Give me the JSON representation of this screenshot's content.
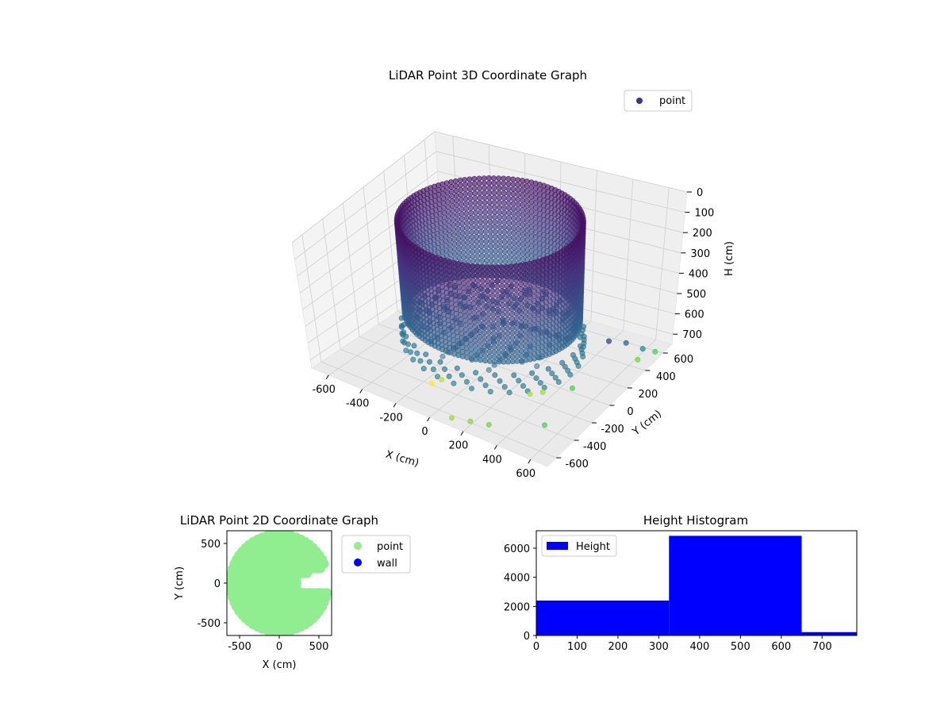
{
  "chart_data": [
    {
      "type": "scatter",
      "projection": "3d",
      "title": "LiDAR Point 3D Coordinate Graph",
      "xlabel": "X (cm)",
      "ylabel": "Y (cm)",
      "zlabel": "H (cm)",
      "xticks": [
        -600,
        -400,
        -200,
        0,
        200,
        400,
        600
      ],
      "yticks": [
        -600,
        -400,
        -200,
        0,
        200,
        400,
        600
      ],
      "zticks": [
        0,
        100,
        200,
        300,
        400,
        500,
        600,
        700
      ],
      "xlim": [
        -700,
        700
      ],
      "ylim": [
        -700,
        700
      ],
      "zlim": [
        0,
        750
      ],
      "z_inverted": true,
      "legend": {
        "placement": "top-right",
        "entries": [
          "point"
        ]
      },
      "series": [
        {
          "name": "point",
          "color": "#440154",
          "colormap": "viridis",
          "shape": "circular wall of points with radius about 450 cm and heights 0–500 cm, interior floor points around 500–650 cm, scattered outliers",
          "wall_radius": 450,
          "wall_height_range": [
            0,
            500
          ],
          "floor_height_range": [
            500,
            650
          ],
          "outliers": [
            {
              "x": 600,
              "y": 150,
              "h": 520
            },
            {
              "x": 650,
              "y": 250,
              "h": 560
            },
            {
              "x": 700,
              "y": 350,
              "h": 620
            },
            {
              "x": 700,
              "y": 500,
              "h": 700
            },
            {
              "x": 640,
              "y": 420,
              "h": 720
            },
            {
              "x": 500,
              "y": -50,
              "h": 700
            },
            {
              "x": 550,
              "y": -450,
              "h": 700
            },
            {
              "x": 300,
              "y": -600,
              "h": 720
            },
            {
              "x": 200,
              "y": -620,
              "h": 730
            },
            {
              "x": 100,
              "y": -640,
              "h": 740
            },
            {
              "x": -150,
              "y": -300,
              "h": 760
            },
            {
              "x": -200,
              "y": -320,
              "h": 790
            },
            {
              "x": 300,
              "y": -150,
              "h": 750
            },
            {
              "x": 350,
              "y": -100,
              "h": 745
            }
          ]
        }
      ],
      "grid": true
    },
    {
      "type": "scatter",
      "title": "LiDAR Point 2D Coordinate Graph",
      "xlabel": "X (cm)",
      "ylabel": "Y (cm)",
      "xticks": [
        -500,
        0,
        500
      ],
      "yticks": [
        -500,
        0,
        500
      ],
      "xlim": [
        -660,
        660
      ],
      "ylim": [
        -660,
        660
      ],
      "legend": {
        "placement": "outside-right",
        "entries": [
          "point",
          "wall"
        ]
      },
      "series": [
        {
          "name": "point",
          "color": "#90ee90",
          "shape": "filled disc of radius about 600 cm with a notch on the right side near y≈0"
        },
        {
          "name": "wall",
          "color": "#0000ff",
          "values": []
        }
      ],
      "grid": false
    },
    {
      "type": "bar",
      "title": "Height Histogram",
      "xticks": [
        0,
        100,
        200,
        300,
        400,
        500,
        600,
        700
      ],
      "yticks": [
        0,
        2000,
        4000,
        6000
      ],
      "xlim": [
        0,
        785
      ],
      "ylim": [
        0,
        7200
      ],
      "legend": {
        "placement": "top-left",
        "entries": [
          "Height"
        ]
      },
      "series": [
        {
          "name": "Height",
          "color": "#0000ff",
          "bins": [
            {
              "from": 0,
              "to": 325,
              "count": 2400
            },
            {
              "from": 325,
              "to": 650,
              "count": 6850
            },
            {
              "from": 650,
              "to": 785,
              "count": 230
            }
          ]
        }
      ],
      "grid": false
    }
  ]
}
